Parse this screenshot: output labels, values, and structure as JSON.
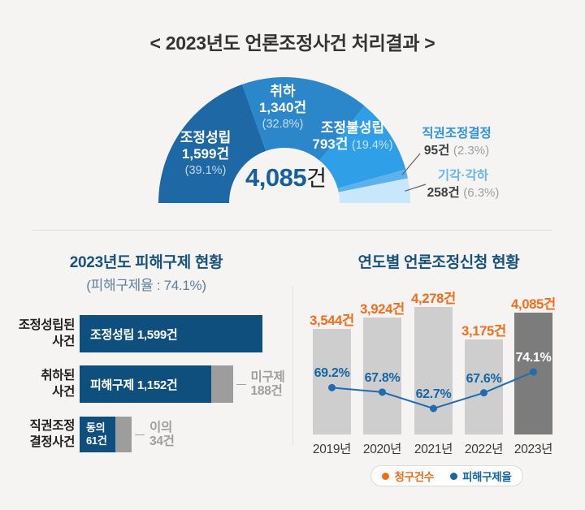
{
  "title": "< 2023년도 언론조정사건 처리결과 >",
  "donut": {
    "total_label": {
      "value": "4,085",
      "unit": "건"
    },
    "segments": [
      {
        "name": "조정성립",
        "value_label": "1,599건",
        "pct_label": "(39.1%)",
        "pct": 39.1,
        "color": "#1e69a5",
        "label_style": "inside"
      },
      {
        "name": "취하",
        "value_label": "1,340건",
        "pct_label": "(32.8%)",
        "pct": 32.8,
        "color": "#2b87c9",
        "label_style": "inside"
      },
      {
        "name": "조정불성립",
        "value_label": "793건",
        "pct_label": "(19.4%)",
        "pct": 19.4,
        "color": "#2f9fe8",
        "label_style": "inside"
      },
      {
        "name": "직권조정결정",
        "value_label": "95건",
        "pct_label": "(2.3%)",
        "pct": 2.3,
        "color": "#5bb2ec",
        "label_style": "callout",
        "label_color": "#2e93d9"
      },
      {
        "name": "기각·각하",
        "value_label": "258건",
        "pct_label": "(6.3%)",
        "pct": 6.3,
        "color": "#c8e7fb",
        "label_style": "callout",
        "label_color": "#69b6ed"
      }
    ]
  },
  "left_panel": {
    "title": "2023년도 피해구제 현황",
    "subtitle": "(피해구제율 : 74.1%)",
    "rows": [
      {
        "label_lines": [
          "조정성립된",
          "사건"
        ],
        "primary": {
          "text": "조정성립 1,599건",
          "value": 1599
        },
        "secondary": null,
        "annotation": null
      },
      {
        "label_lines": [
          "취하된",
          "사건"
        ],
        "primary": {
          "text": "피해구제 1,152건",
          "value": 1152
        },
        "secondary": {
          "value": 188
        },
        "annotation": [
          "미구제",
          "188건"
        ]
      },
      {
        "label_lines": [
          "직권조정",
          "결정사건"
        ],
        "primary": {
          "text_lines": [
            "동의",
            "61건"
          ],
          "value": 61
        },
        "secondary": {
          "value": 34
        },
        "annotation": [
          "이의",
          "34건"
        ]
      }
    ]
  },
  "right_panel": {
    "title": "연도별 언론조정신청 현황",
    "legend": [
      {
        "label": "청구건수",
        "color": "#f26c1a"
      },
      {
        "label": "피해구제율",
        "color": "#1566a4"
      }
    ]
  },
  "colors": {
    "bar_default": "#cecece",
    "bar_highlight": "#7c7c7c",
    "rate_text": "#1566a4",
    "rate_text_on_dark": "#ffffff",
    "count_text": "#f26c1a",
    "line": "#1f6cb0"
  },
  "chart_data": [
    {
      "type": "pie",
      "title": "2023년도 언론조정사건 처리결과",
      "shape": "semicircle-donut",
      "total": 4085,
      "unit": "건",
      "slices": [
        {
          "label": "조정성립",
          "value": 1599,
          "pct": 39.1
        },
        {
          "label": "취하",
          "value": 1340,
          "pct": 32.8
        },
        {
          "label": "조정불성립",
          "value": 793,
          "pct": 19.4
        },
        {
          "label": "직권조정결정",
          "value": 95,
          "pct": 2.3
        },
        {
          "label": "기각·각하",
          "value": 258,
          "pct": 6.3
        }
      ]
    },
    {
      "type": "bar",
      "orientation": "horizontal",
      "title": "2023년도 피해구제 현황",
      "subtitle": "피해구제율 : 74.1%",
      "categories": [
        "조정성립된 사건",
        "취하된 사건",
        "직권조정 결정사건"
      ],
      "series": [
        {
          "name": "구제/동의",
          "values": [
            1599,
            1152,
            61
          ],
          "labels": [
            "조정성립 1,599건",
            "피해구제 1,152건",
            "동의 61건"
          ]
        },
        {
          "name": "미구제/이의",
          "values": [
            0,
            188,
            34
          ],
          "labels": [
            "",
            "미구제 188건",
            "이의 34건"
          ]
        }
      ]
    },
    {
      "type": "bar+line",
      "title": "연도별 언론조정신청 현황",
      "categories": [
        "2019년",
        "2020년",
        "2021년",
        "2022년",
        "2023년"
      ],
      "series": [
        {
          "name": "청구건수",
          "type": "bar",
          "unit": "건",
          "values": [
            3544,
            3924,
            4278,
            3175,
            4085
          ],
          "labels": [
            "3,544건",
            "3,924건",
            "4,278건",
            "3,175건",
            "4,085건"
          ]
        },
        {
          "name": "피해구제율",
          "type": "line",
          "unit": "%",
          "values": [
            69.2,
            67.8,
            62.7,
            67.6,
            74.1
          ],
          "labels": [
            "69.2%",
            "67.8%",
            "62.7%",
            "67.6%",
            "74.1%"
          ]
        }
      ],
      "highlight_category": "2023년",
      "legend_position": "bottom"
    }
  ]
}
